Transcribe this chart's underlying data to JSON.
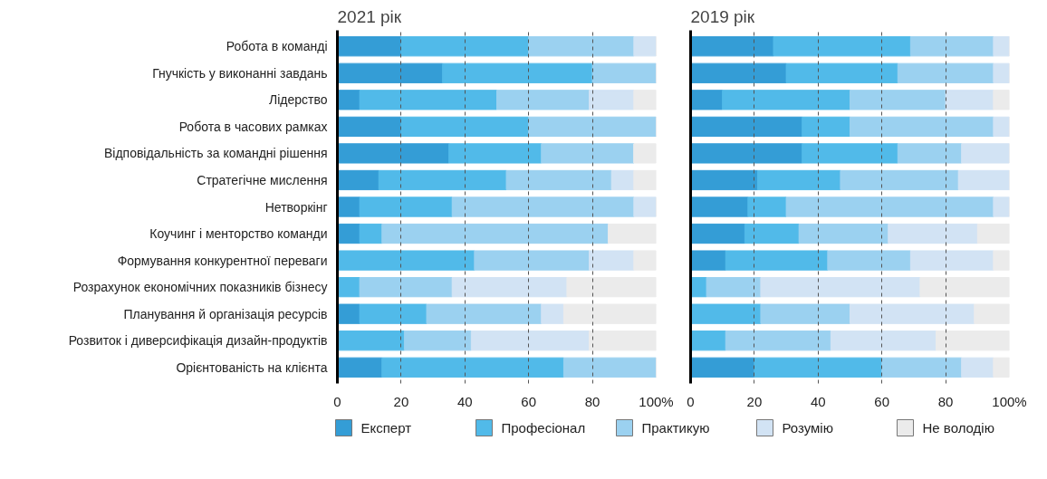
{
  "chart_data": [
    {
      "type": "bar",
      "orientation": "horizontal",
      "stacked": true,
      "title": "2021 рік",
      "categories": [
        "Робота в команді",
        "Гнучкість у виконанні завдань",
        "Лідерство",
        "Робота в часових рамках",
        "Відповідальність за командні рішення",
        "Стратегічне мислення",
        "Нетворкінг",
        "Коучинг і менторство команди",
        "Формування конкурентної переваги",
        "Розрахунок економічних показників бізнесу",
        "Планування й організація ресурсів",
        "Розвиток і диверсифікація дизайн-продуктів",
        "Орієнтованість на клієнта"
      ],
      "series": [
        {
          "name": "Експерт",
          "color": "#349dd6",
          "values": [
            20,
            33,
            7,
            20,
            35,
            13,
            7,
            7,
            0,
            0,
            7,
            0,
            14
          ]
        },
        {
          "name": "Професіонал",
          "color": "#51bae9",
          "values": [
            40,
            47,
            43,
            40,
            29,
            40,
            29,
            7,
            43,
            7,
            21,
            21,
            57
          ]
        },
        {
          "name": "Практикую",
          "color": "#9bd1f0",
          "values": [
            33,
            20,
            29,
            40,
            29,
            33,
            57,
            71,
            36,
            29,
            36,
            21,
            29
          ]
        },
        {
          "name": "Розумію",
          "color": "#d2e3f4",
          "values": [
            7,
            0,
            14,
            0,
            0,
            7,
            7,
            0,
            14,
            36,
            7,
            37,
            0
          ]
        },
        {
          "name": "Не володію",
          "color": "#ebebeb",
          "values": [
            0,
            0,
            7,
            0,
            7,
            7,
            0,
            15,
            7,
            28,
            29,
            21,
            0
          ]
        }
      ],
      "xlim": [
        0,
        100
      ],
      "xticks": [
        0,
        20,
        40,
        60,
        80,
        {
          "value": 100,
          "label": "100%"
        }
      ],
      "grid": "x",
      "legend": "bottom"
    },
    {
      "type": "bar",
      "orientation": "horizontal",
      "stacked": true,
      "title": "2019 рік",
      "series": [
        {
          "color": "#349dd6",
          "values": [
            26,
            30,
            10,
            35,
            35,
            21,
            18,
            17,
            11,
            0,
            0,
            0,
            20
          ]
        },
        {
          "color": "#51bae9",
          "values": [
            43,
            35,
            40,
            15,
            30,
            26,
            12,
            17,
            32,
            5,
            22,
            11,
            40
          ]
        },
        {
          "color": "#9bd1f0",
          "values": [
            26,
            30,
            30,
            45,
            20,
            37,
            65,
            28,
            26,
            17,
            28,
            33,
            25
          ]
        },
        {
          "color": "#d2e3f4",
          "values": [
            5,
            5,
            15,
            5,
            15,
            16,
            5,
            28,
            26,
            50,
            39,
            33,
            10
          ]
        },
        {
          "color": "#ebebeb",
          "values": [
            0,
            0,
            5,
            0,
            0,
            0,
            0,
            10,
            5,
            28,
            11,
            23,
            5
          ]
        }
      ],
      "xlim": [
        0,
        100
      ],
      "xticks": [
        0,
        20,
        40,
        60,
        80,
        {
          "value": 100,
          "label": "100%"
        }
      ],
      "grid": "x",
      "tick_labels": "x"
    }
  ]
}
